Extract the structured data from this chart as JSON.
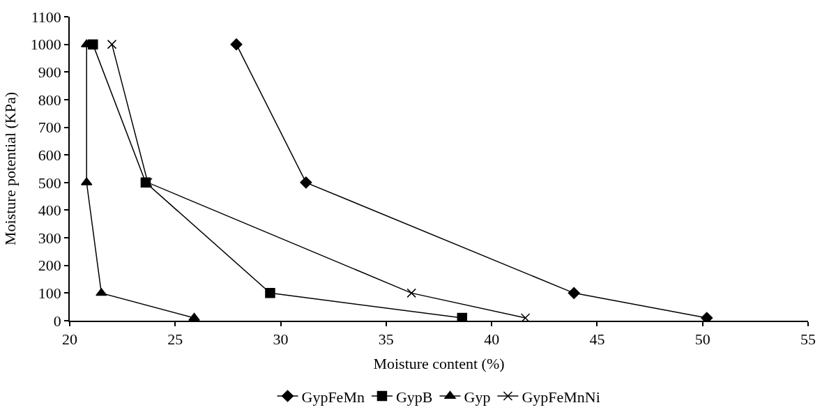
{
  "chart_data": {
    "type": "line",
    "xlabel": "Moisture content (%)",
    "ylabel": "Moisture potential (KPa)",
    "xlim": [
      20,
      55
    ],
    "xticks": [
      20,
      25,
      30,
      35,
      40,
      45,
      50,
      55
    ],
    "ylim": [
      0,
      1100
    ],
    "yticks": [
      0,
      100,
      200,
      300,
      400,
      500,
      600,
      700,
      800,
      900,
      1000,
      1100
    ],
    "legend": "bottom",
    "series": [
      {
        "name": "GypFeMn",
        "color": "#000000",
        "marker": "diamond",
        "x": [
          27.9,
          31.2,
          43.9,
          50.2
        ],
        "values": [
          1000,
          500,
          100,
          10
        ]
      },
      {
        "name": "GypB",
        "color": "#000000",
        "marker": "square",
        "x": [
          21.1,
          23.6,
          29.5,
          38.6
        ],
        "values": [
          1000,
          500,
          100,
          10
        ]
      },
      {
        "name": "Gyp",
        "color": "#000000",
        "marker": "triangle",
        "x": [
          20.8,
          20.8,
          21.5,
          25.9
        ],
        "values": [
          1000,
          500,
          100,
          10
        ]
      },
      {
        "name": "GypFeMnNi",
        "color": "#000000",
        "marker": "cross",
        "x": [
          22.0,
          23.7,
          36.2,
          41.6
        ],
        "values": [
          1000,
          500,
          100,
          10
        ]
      }
    ]
  }
}
